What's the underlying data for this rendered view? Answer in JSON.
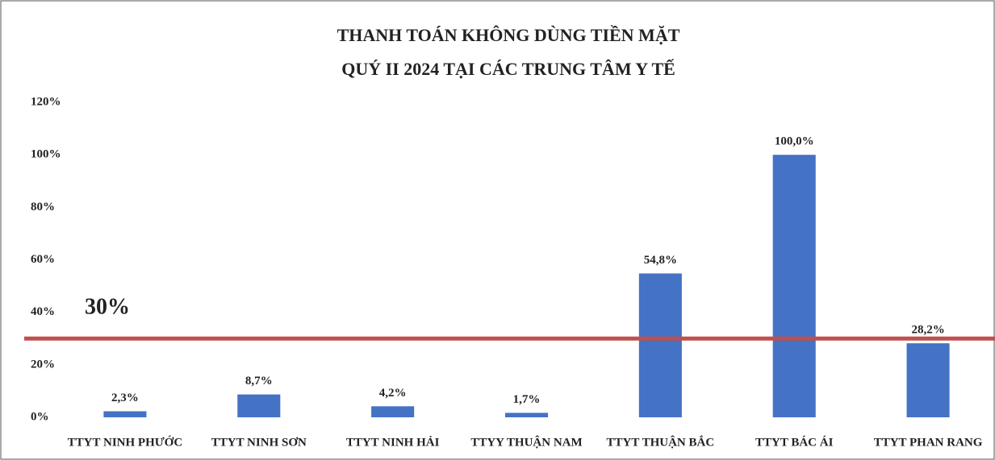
{
  "chart_data": {
    "type": "bar",
    "title": [
      "THANH TOÁN KHÔNG DÙNG TIỀN MẶT",
      "QUÝ II 2024 TẠI CÁC TRUNG TÂM Y TẾ"
    ],
    "categories": [
      "TTYT NINH PHƯỚC",
      "TTYT NINH SƠN",
      "TTYT NINH HẢI",
      "TTYY THUẬN NAM",
      "TTYT THUẬN BẮC",
      "TTYT BÁC ÁI",
      "TTYT PHAN RANG"
    ],
    "values": [
      2.3,
      8.7,
      4.2,
      1.7,
      54.8,
      100,
      28.2
    ],
    "value_labels": [
      "2,3%",
      "8,7%",
      "4,2%",
      "1,7%",
      "54,8%",
      "100,0%",
      "28,2%"
    ],
    "color": "#4472c4",
    "ylim": [
      0,
      120
    ],
    "yticks": [
      {
        "value": 0,
        "label": "0%"
      },
      {
        "value": 20,
        "label": "20%"
      },
      {
        "value": 40,
        "label": "40%"
      },
      {
        "value": 60,
        "label": "60%"
      },
      {
        "value": 80,
        "label": "80%"
      },
      {
        "value": 100,
        "label": "100%"
      },
      {
        "value": 120,
        "label": "120%"
      }
    ],
    "grid": false,
    "reference_line": {
      "value": 30,
      "label": "30%",
      "color": "#c0504d",
      "label_color": "#c00000"
    }
  }
}
